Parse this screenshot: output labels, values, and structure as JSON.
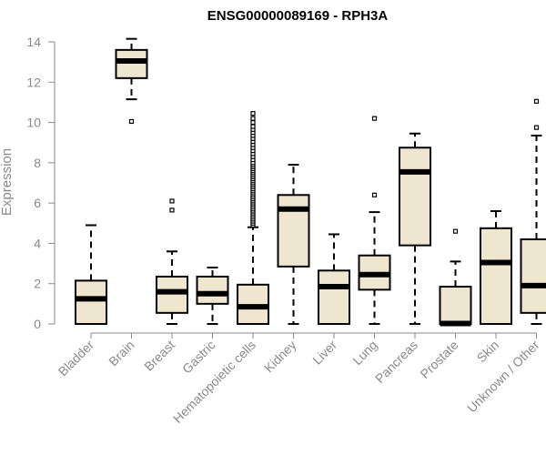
{
  "chart_data": {
    "type": "boxplot",
    "title": "ENSG00000089169 - RPH3A",
    "xlabel": "",
    "ylabel": "Expression",
    "ylim": [
      0,
      14
    ],
    "yticks": [
      0,
      2,
      4,
      6,
      8,
      10,
      12,
      14
    ],
    "grid": false,
    "box_color": "#efe6cf",
    "outline_color": "#000000",
    "axis_color": "#8a8a8a",
    "categories": [
      "Bladder",
      "Brain",
      "Breast",
      "Gastric",
      "Hematopoietic cells",
      "Kidney",
      "Liver",
      "Lung",
      "Pancreas",
      "Prostate",
      "Skin",
      "Unknown / Other"
    ],
    "boxes": [
      {
        "category": "Bladder",
        "whisker_low": 0,
        "q1": 0,
        "median": 1.25,
        "q3": 2.15,
        "whisker_high": 4.9,
        "outliers": []
      },
      {
        "category": "Brain",
        "whisker_low": 11.15,
        "q1": 12.2,
        "median": 13.05,
        "q3": 13.6,
        "whisker_high": 14.15,
        "outliers": [
          10.05
        ]
      },
      {
        "category": "Breast",
        "whisker_low": 0,
        "q1": 0.55,
        "median": 1.6,
        "q3": 2.35,
        "whisker_high": 3.6,
        "outliers": [
          5.65,
          6.1
        ]
      },
      {
        "category": "Gastric",
        "whisker_low": 0,
        "q1": 1.0,
        "median": 1.5,
        "q3": 2.35,
        "whisker_high": 2.8,
        "outliers": []
      },
      {
        "category": "Hematopoietic cells",
        "whisker_low": 0,
        "q1": 0,
        "median": 0.85,
        "q3": 1.95,
        "whisker_high": 4.8,
        "outliers": [
          4.9,
          5.0,
          5.1,
          5.2,
          5.3,
          5.4,
          5.5,
          5.6,
          5.7,
          5.8,
          5.9,
          6.0,
          6.1,
          6.2,
          6.3,
          6.4,
          6.5,
          6.6,
          6.7,
          6.8,
          6.9,
          7.0,
          7.1,
          7.2,
          7.3,
          7.4,
          7.5,
          7.6,
          7.7,
          7.8,
          7.9,
          8.0,
          8.15,
          8.3,
          8.45,
          8.6,
          8.75,
          8.9,
          9.05,
          9.2,
          9.35,
          9.5,
          9.65,
          9.8,
          10.0,
          10.2,
          10.45
        ]
      },
      {
        "category": "Kidney",
        "whisker_low": 0,
        "q1": 2.85,
        "median": 5.7,
        "q3": 6.4,
        "whisker_high": 7.9,
        "outliers": []
      },
      {
        "category": "Liver",
        "whisker_low": 0,
        "q1": 0,
        "median": 1.85,
        "q3": 2.65,
        "whisker_high": 4.45,
        "outliers": []
      },
      {
        "category": "Lung",
        "whisker_low": 0,
        "q1": 1.7,
        "median": 2.45,
        "q3": 3.4,
        "whisker_high": 5.55,
        "outliers": [
          6.4,
          10.2
        ]
      },
      {
        "category": "Pancreas",
        "whisker_low": 0,
        "q1": 3.9,
        "median": 7.55,
        "q3": 8.75,
        "whisker_high": 9.45,
        "outliers": []
      },
      {
        "category": "Prostate",
        "whisker_low": 0,
        "q1": 0,
        "median": 0.02,
        "q3": 1.85,
        "whisker_high": 3.1,
        "outliers": [
          4.6
        ]
      },
      {
        "category": "Skin",
        "whisker_low": 0,
        "q1": 0,
        "median": 3.05,
        "q3": 4.75,
        "whisker_high": 5.6,
        "outliers": []
      },
      {
        "category": "Unknown / Other",
        "whisker_low": 0,
        "q1": 0.55,
        "median": 1.9,
        "q3": 4.2,
        "whisker_high": 9.35,
        "outliers": [
          9.75,
          11.05
        ]
      }
    ]
  }
}
